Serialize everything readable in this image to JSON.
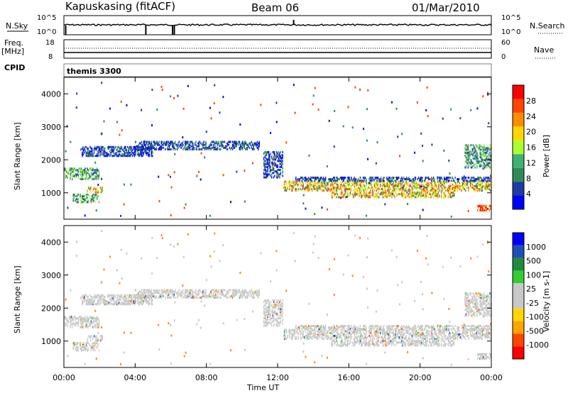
{
  "header": {
    "station": "Kapuskasing (fitACF)",
    "beam": "Beam 06",
    "date": "01/Mar/2010"
  },
  "noise_panel": {
    "left_label": "N.Sky",
    "left_ticks": [
      "10^5",
      "10^0"
    ],
    "right_label": "N.Search",
    "right_ticks": [
      "10^5",
      "10^0"
    ]
  },
  "freq_panel": {
    "left_label_1": "Freq.",
    "left_label_2": "[MHz]",
    "left_ticks": [
      "18",
      "8"
    ],
    "right_label": "Nave",
    "right_ticks": [
      "60",
      "0"
    ],
    "cpid_label": "CPID",
    "cpid_value": "themis 3300"
  },
  "chart_data": [
    {
      "type": "heatmap",
      "name": "Power",
      "xlabel": "Time UT",
      "ylabel": "Slant Range [km]",
      "x_range_hours": [
        0,
        24
      ],
      "ylim": [
        200,
        4500
      ],
      "y_ticks": [
        1000,
        2000,
        3000,
        4000
      ],
      "colorbar_label": "Power [dB]",
      "colorbar_ticks": [
        "28",
        "24",
        "20",
        "16",
        "12",
        "8",
        "4"
      ],
      "colorbar_colors": [
        "#0000ff",
        "#1e3ca0",
        "#2e8b57",
        "#3cb371",
        "#adff2f",
        "#ffd700",
        "#ff8c00",
        "#ff4500",
        "#ff0000"
      ],
      "echo_bands": [
        {
          "t0": 0.0,
          "t1": 2.0,
          "r0": 1450,
          "r1": 1800,
          "level": "mid"
        },
        {
          "t0": 0.5,
          "t1": 2.0,
          "r0": 750,
          "r1": 1000,
          "level": "mid"
        },
        {
          "t0": 1.3,
          "t1": 2.2,
          "r0": 1050,
          "r1": 1250,
          "level": "high"
        },
        {
          "t0": 1.0,
          "t1": 5.0,
          "r0": 2150,
          "r1": 2450,
          "level": "low"
        },
        {
          "t0": 4.0,
          "t1": 11.0,
          "r0": 2350,
          "r1": 2600,
          "level": "low"
        },
        {
          "t0": 11.2,
          "t1": 12.3,
          "r0": 1500,
          "r1": 2300,
          "level": "low"
        },
        {
          "t0": 12.3,
          "t1": 24.0,
          "r0": 1100,
          "r1": 1400,
          "level": "high"
        },
        {
          "t0": 13.0,
          "t1": 24.0,
          "r0": 1400,
          "r1": 1550,
          "level": "low"
        },
        {
          "t0": 15.0,
          "t1": 22.0,
          "r0": 900,
          "r1": 1100,
          "level": "high"
        },
        {
          "t0": 23.2,
          "t1": 24.0,
          "r0": 500,
          "r1": 700,
          "level": "veryhigh"
        },
        {
          "t0": 22.5,
          "t1": 24.0,
          "r0": 1800,
          "r1": 2500,
          "level": "mid"
        }
      ]
    },
    {
      "type": "heatmap",
      "name": "Velocity",
      "xlabel": "Time UT",
      "ylabel": "Slant Range [km]",
      "x_range_hours": [
        0,
        24
      ],
      "ylim": [
        200,
        4500
      ],
      "y_ticks": [
        1000,
        2000,
        3000,
        4000
      ],
      "x_ticks": [
        "00:00",
        "04:00",
        "08:00",
        "12:00",
        "16:00",
        "20:00",
        "00:00"
      ],
      "colorbar_label": "Velocity [m s-1]",
      "colorbar_ticks": [
        "1000",
        "500",
        "100",
        "25",
        "-25",
        "-100",
        "-500",
        "-1000"
      ],
      "colorbar_colors": [
        "#ff0000",
        "#ff4500",
        "#ffa500",
        "#ffd700",
        "#c8c8c8",
        "#c8c8c8",
        "#32cd32",
        "#1e8c3c",
        "#1e50b4",
        "#0000ff"
      ],
      "dominant_color": "#c8c8c8"
    }
  ]
}
